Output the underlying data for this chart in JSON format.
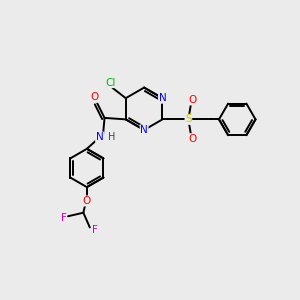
{
  "background_color": "#ebebeb",
  "bond_color": "#000000",
  "atom_colors": {
    "N": "#0000ff",
    "O": "#ff0000",
    "Cl": "#00bb00",
    "F": "#cc00cc",
    "S": "#cccc00",
    "C": "#000000",
    "H": "#444444"
  },
  "lw": 1.4,
  "fontsize": 7.0
}
